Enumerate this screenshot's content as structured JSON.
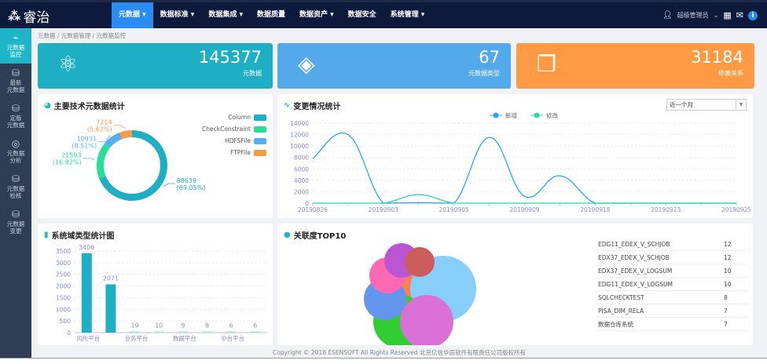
{
  "header": {
    "logo": "睿治",
    "nav": [
      {
        "label": "元数据 ▾",
        "active": true
      },
      {
        "label": "数据标准 ▾"
      },
      {
        "label": "数据集成 ▾"
      },
      {
        "label": "数据质量"
      },
      {
        "label": "数据资产 ▾"
      },
      {
        "label": "数据安全"
      },
      {
        "label": "系统管理 ▾"
      }
    ],
    "user": "超级管理员",
    "user_caret": "⌄"
  },
  "sidebar": {
    "items": [
      {
        "icon": "⌁",
        "l1": "元数据",
        "l2": "监控",
        "active": true
      },
      {
        "icon": "⛁",
        "l1": "最新",
        "l2": "元数据"
      },
      {
        "icon": "⛁",
        "l1": "定版",
        "l2": "元数据"
      },
      {
        "icon": "◎",
        "l1": "元数据",
        "l2": "分析"
      },
      {
        "icon": "⛁",
        "l1": "元数据",
        "l2": "检核"
      },
      {
        "icon": "⛁",
        "l1": "元数据",
        "l2": "变更"
      }
    ]
  },
  "breadcrumb": "元数据 / 元数据管理 / 元数据监控",
  "cards": [
    {
      "value": "145377",
      "label": "元数据",
      "color": "#1fafc4"
    },
    {
      "value": "67",
      "label": "元数据类型",
      "color": "#53a9ea"
    },
    {
      "value": "31184",
      "label": "依赖关系",
      "color": "#fd9a43"
    }
  ],
  "donut": {
    "title": "主要技术元数据统计",
    "slices": [
      {
        "name": "Column",
        "value": 88639,
        "pct": "69.05%",
        "color": "#1fafc4"
      },
      {
        "name": "CheckConstraint",
        "value": 21593,
        "pct": "16.82%",
        "color": "#27e095"
      },
      {
        "name": "HDFSFile",
        "value": 10931,
        "pct": "8.51%",
        "color": "#58aef0"
      },
      {
        "name": "FTPFile",
        "value": 7214,
        "pct": "5.62%",
        "color": "#fd9a43"
      }
    ]
  },
  "chart_data": [
    {
      "type": "line",
      "title": "变更情况统计",
      "x": [
        "20190826",
        "",
        "20190903",
        "",
        "20190905",
        "",
        "20190909",
        "",
        "20190918",
        "",
        "20190923",
        "",
        "20190925"
      ],
      "series": [
        {
          "name": "新增",
          "color": "#2ba7f5",
          "values": [
            7800,
            12000,
            0,
            100,
            0,
            11500,
            1200,
            4800,
            0,
            0,
            0,
            0,
            0
          ]
        },
        {
          "name": "修改",
          "color": "#2ad8a8",
          "values": [
            0,
            0,
            0,
            1500,
            0,
            0,
            0,
            0,
            0,
            0,
            0,
            0,
            0
          ]
        }
      ],
      "yticks": [
        0,
        2000,
        4000,
        6000,
        8000,
        10000,
        12000,
        14000
      ],
      "ylim": [
        0,
        14000
      ],
      "grid": true,
      "legend": "top-center"
    },
    {
      "type": "bar",
      "title": "系统域类型统计图",
      "categories": [
        "风险平台",
        "",
        "业务平台",
        "",
        "数据平台",
        "",
        "中台平台",
        ""
      ],
      "values": [
        3406,
        2071,
        19,
        10,
        9,
        8,
        6,
        6
      ],
      "yticks": [
        0,
        500,
        1000,
        1500,
        2000,
        2500,
        3000,
        3500
      ],
      "ylim": [
        0,
        3500
      ],
      "grid": true,
      "color": "#1fafc4",
      "color_small": "#a8e4ec"
    }
  ],
  "range_select": "近一个月",
  "top10": {
    "title": "关联度TOP10",
    "bubble_colors": [
      "#ff7f50",
      "#87cefa",
      "#32cd32",
      "#da70d6",
      "#6495ed",
      "#ff69b4",
      "#ba55d3",
      "#cd5c5c"
    ],
    "rows": [
      {
        "name": "EDG11_EDEX_V_SCHJOB",
        "value": "12"
      },
      {
        "name": "EDX37_EDEX_V_SCHJOB",
        "value": "12"
      },
      {
        "name": "EDX37_EDEX_V_LOGSUM",
        "value": "10"
      },
      {
        "name": "EDG11_EDEX_V_LOGSUM",
        "value": "10"
      },
      {
        "name": "SQLCHECKTEST",
        "value": "8"
      },
      {
        "name": "PISA_DIM_RELA",
        "value": "7"
      },
      {
        "name": "数据仓库系统",
        "value": "7"
      }
    ]
  },
  "footer": "Copyright © 2018 ESENSOFT All Rights Reserved 北京亿信华辰软件有限责任公司版权所有"
}
